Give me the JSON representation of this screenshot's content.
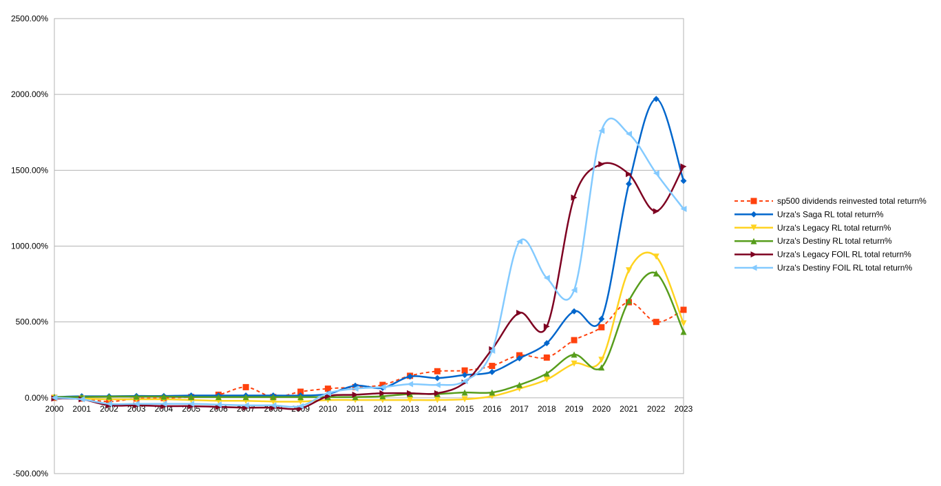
{
  "chart_data": {
    "type": "line",
    "title": "",
    "xlabel": "",
    "ylabel": "",
    "x": [
      "2000",
      "2001",
      "2002",
      "2003",
      "2004",
      "2005",
      "2006",
      "2007",
      "2008",
      "2009",
      "2010",
      "2011",
      "2012",
      "2013",
      "2014",
      "2015",
      "2016",
      "2017",
      "2018",
      "2019",
      "2020",
      "2021",
      "2022",
      "2023"
    ],
    "y_ticks": [
      "-500.00%",
      "0.00%",
      "500.00%",
      "1000.00%",
      "1500.00%",
      "2000.00%",
      "2500.00%"
    ],
    "ylim": [
      -500,
      2500
    ],
    "grid": true,
    "legend_position": "right",
    "series": [
      {
        "name": "sp500 dividends reinvested total return%",
        "color": "#ff420e",
        "dashed": true,
        "marker": "square",
        "values": [
          0,
          -5,
          -25,
          -5,
          -2,
          5,
          20,
          70,
          5,
          40,
          60,
          70,
          85,
          145,
          175,
          180,
          210,
          280,
          265,
          380,
          465,
          630,
          500,
          580
        ]
      },
      {
        "name": "Urza's Saga RL total return%",
        "color": "#0066cc",
        "dashed": false,
        "marker": "diamond",
        "values": [
          5,
          10,
          10,
          12,
          12,
          15,
          15,
          15,
          15,
          15,
          25,
          80,
          65,
          140,
          130,
          150,
          170,
          260,
          360,
          570,
          520,
          1410,
          1970,
          1430
        ]
      },
      {
        "name": "Urza's Legacy RL total return%",
        "color": "#ffd320",
        "dashed": false,
        "marker": "triangle-down",
        "values": [
          0,
          -5,
          -10,
          -10,
          -10,
          -15,
          -20,
          -20,
          -25,
          -25,
          -15,
          -15,
          -15,
          -15,
          -15,
          -10,
          10,
          60,
          120,
          225,
          250,
          840,
          930,
          490
        ]
      },
      {
        "name": "Urza's Destiny RL total return%",
        "color": "#579d1c",
        "dashed": false,
        "marker": "triangle-up",
        "values": [
          5,
          5,
          8,
          8,
          8,
          5,
          5,
          5,
          5,
          5,
          5,
          5,
          10,
          25,
          25,
          35,
          35,
          85,
          160,
          285,
          200,
          640,
          820,
          435
        ]
      },
      {
        "name": "Urza's Legacy FOIL RL total return%",
        "color": "#7e0021",
        "dashed": false,
        "marker": "triangle-right",
        "values": [
          -5,
          -10,
          -50,
          -50,
          -55,
          -55,
          -60,
          -65,
          -65,
          -70,
          10,
          20,
          30,
          30,
          30,
          100,
          320,
          560,
          470,
          1320,
          1540,
          1475,
          1230,
          1525
        ]
      },
      {
        "name": "Urza's Destiny FOIL RL total return%",
        "color": "#83caff",
        "dashed": false,
        "marker": "triangle-left",
        "values": [
          0,
          -10,
          -40,
          -40,
          -40,
          -40,
          -45,
          -50,
          -50,
          -55,
          30,
          60,
          70,
          90,
          85,
          110,
          310,
          1030,
          790,
          710,
          1760,
          1740,
          1480,
          1245
        ]
      }
    ]
  }
}
